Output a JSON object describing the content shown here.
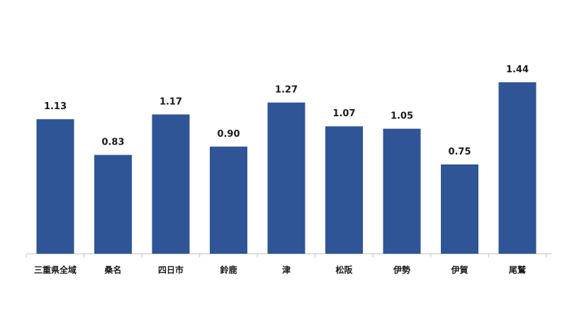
{
  "chart_data": {
    "type": "bar",
    "categories": [
      "三重県全域",
      "桑名",
      "四日市",
      "鈴鹿",
      "津",
      "松阪",
      "伊勢",
      "伊賀",
      "尾鷲"
    ],
    "values": [
      1.13,
      0.83,
      1.17,
      0.9,
      1.27,
      1.07,
      1.05,
      0.75,
      1.44
    ],
    "value_labels": [
      "1.13",
      "0.83",
      "1.17",
      "0.90",
      "1.27",
      "1.07",
      "1.05",
      "0.75",
      "1.44"
    ],
    "ylim": [
      0,
      1.6
    ],
    "grid": false,
    "legend": "none",
    "bar_color": "#2F5597"
  }
}
